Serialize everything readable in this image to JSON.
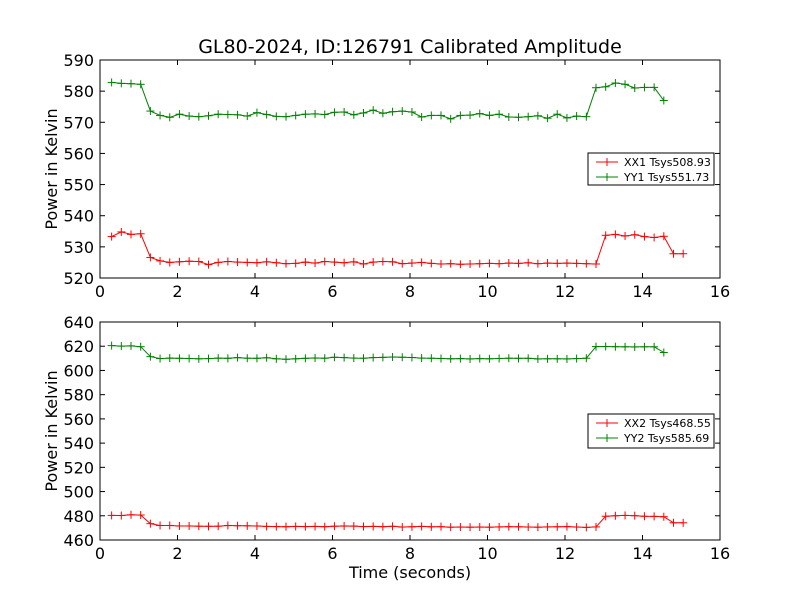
{
  "chart_data": [
    {
      "type": "line",
      "title": "GL80-2024, ID:126791 Calibrated Amplitude",
      "xlabel": "",
      "ylabel": "Power in Kelvin",
      "xlim": [
        0,
        16
      ],
      "ylim": [
        520,
        590
      ],
      "xticks": [
        "0",
        "2",
        "4",
        "6",
        "8",
        "10",
        "12",
        "14",
        "16"
      ],
      "yticks": [
        "520",
        "530",
        "540",
        "550",
        "560",
        "570",
        "580",
        "590"
      ],
      "legend_position": "center-right",
      "x": [
        0.3,
        0.55,
        0.8,
        1.05,
        1.3,
        1.55,
        1.8,
        2.05,
        2.3,
        2.55,
        2.8,
        3.05,
        3.3,
        3.55,
        3.8,
        4.05,
        4.3,
        4.55,
        4.8,
        5.05,
        5.3,
        5.55,
        5.8,
        6.05,
        6.3,
        6.55,
        6.8,
        7.05,
        7.3,
        7.55,
        7.8,
        8.05,
        8.3,
        8.55,
        8.8,
        9.05,
        9.3,
        9.55,
        9.8,
        10.05,
        10.3,
        10.55,
        10.8,
        11.05,
        11.3,
        11.55,
        11.8,
        12.05,
        12.3,
        12.55,
        12.8,
        13.05,
        13.3,
        13.55,
        13.8,
        14.05,
        14.3,
        14.55,
        14.8,
        15.05
      ],
      "series": [
        {
          "name": "XX1 Tsys508.93",
          "color": "#ff0000",
          "values": [
            533.3,
            534.8,
            534.0,
            534.2,
            526.6,
            525.5,
            525.0,
            525.2,
            525.4,
            525.3,
            524.3,
            525.0,
            525.3,
            525.1,
            525.0,
            524.9,
            525.2,
            524.9,
            524.6,
            524.7,
            525.1,
            524.8,
            525.3,
            525.1,
            524.9,
            525.2,
            524.5,
            525.1,
            525.3,
            525.2,
            524.6,
            524.8,
            525.0,
            524.7,
            524.5,
            524.6,
            524.4,
            524.5,
            524.6,
            524.7,
            524.6,
            524.8,
            524.7,
            524.9,
            524.6,
            524.8,
            524.7,
            524.8,
            524.7,
            524.6,
            524.5,
            533.7,
            534.0,
            533.5,
            533.9,
            533.3,
            533.0,
            533.4,
            527.8,
            527.8
          ],
          "end_index": 59
        },
        {
          "name": "YY1 Tsys551.73",
          "color": "#008000",
          "values": [
            582.8,
            582.5,
            582.4,
            582.2,
            573.6,
            572.2,
            571.6,
            572.6,
            572.0,
            571.8,
            572.1,
            572.6,
            572.5,
            572.4,
            572.0,
            573.1,
            572.5,
            571.9,
            571.8,
            572.2,
            572.6,
            572.7,
            572.5,
            573.2,
            573.3,
            572.4,
            573.0,
            573.9,
            572.9,
            573.4,
            573.6,
            573.3,
            571.7,
            572.2,
            572.2,
            571.1,
            572.2,
            572.3,
            572.8,
            572.2,
            572.6,
            571.7,
            571.6,
            571.8,
            572.1,
            571.3,
            572.6,
            571.4,
            572.0,
            571.8,
            581.1,
            581.4,
            582.6,
            582.2,
            581.0,
            581.2,
            581.2,
            577.0,
            577.0,
            577.0
          ],
          "end_index": 57
        }
      ]
    },
    {
      "type": "line",
      "title": "",
      "xlabel": "Time (seconds)",
      "ylabel": "Power in Kelvin",
      "xlim": [
        0,
        16
      ],
      "ylim": [
        460,
        640
      ],
      "xticks": [
        "0",
        "2",
        "4",
        "6",
        "8",
        "10",
        "12",
        "14",
        "16"
      ],
      "yticks": [
        "460",
        "480",
        "500",
        "520",
        "540",
        "560",
        "580",
        "600",
        "620",
        "640"
      ],
      "legend_position": "center-right",
      "x": [
        0.3,
        0.55,
        0.8,
        1.05,
        1.3,
        1.55,
        1.8,
        2.05,
        2.3,
        2.55,
        2.8,
        3.05,
        3.3,
        3.55,
        3.8,
        4.05,
        4.3,
        4.55,
        4.8,
        5.05,
        5.3,
        5.55,
        5.8,
        6.05,
        6.3,
        6.55,
        6.8,
        7.05,
        7.3,
        7.55,
        7.8,
        8.05,
        8.3,
        8.55,
        8.8,
        9.05,
        9.3,
        9.55,
        9.8,
        10.05,
        10.3,
        10.55,
        10.8,
        11.05,
        11.3,
        11.55,
        11.8,
        12.05,
        12.3,
        12.55,
        12.8,
        13.05,
        13.3,
        13.55,
        13.8,
        14.05,
        14.3,
        14.55,
        14.8,
        15.05
      ],
      "series": [
        {
          "name": "XX2 Tsys468.55",
          "color": "#ff0000",
          "values": [
            480.3,
            480.2,
            480.8,
            480.6,
            473.5,
            472.0,
            472.0,
            471.6,
            471.6,
            471.4,
            471.3,
            471.4,
            472.0,
            471.8,
            471.7,
            471.6,
            471.2,
            471.1,
            471.0,
            471.2,
            471.1,
            471.2,
            471.0,
            471.4,
            471.6,
            471.5,
            471.1,
            471.2,
            471.0,
            471.3,
            470.7,
            470.9,
            471.2,
            470.9,
            471.0,
            470.6,
            470.7,
            470.6,
            470.7,
            470.6,
            470.8,
            471.0,
            470.9,
            470.7,
            470.6,
            470.8,
            470.9,
            471.1,
            470.7,
            470.4,
            470.8,
            479.6,
            480.0,
            480.3,
            480.1,
            479.6,
            479.5,
            479.2,
            474.2,
            474.2
          ],
          "end_index": 59
        },
        {
          "name": "YY2 Tsys585.69",
          "color": "#008000",
          "values": [
            620.5,
            620.1,
            620.3,
            619.6,
            611.4,
            609.8,
            610.2,
            610.0,
            609.9,
            609.6,
            609.8,
            610.2,
            610.0,
            610.6,
            610.1,
            610.0,
            610.5,
            609.6,
            609.2,
            609.6,
            610.0,
            610.3,
            610.1,
            610.9,
            610.6,
            610.2,
            610.1,
            610.6,
            610.8,
            611.1,
            610.9,
            610.7,
            610.2,
            610.1,
            609.9,
            609.6,
            609.8,
            609.5,
            609.8,
            609.6,
            609.9,
            610.1,
            610.0,
            610.0,
            609.5,
            609.6,
            609.6,
            609.5,
            609.8,
            610.1,
            619.7,
            619.8,
            619.6,
            619.5,
            619.4,
            619.5,
            619.5,
            614.8,
            614.8,
            614.8
          ],
          "end_index": 57
        }
      ]
    }
  ]
}
